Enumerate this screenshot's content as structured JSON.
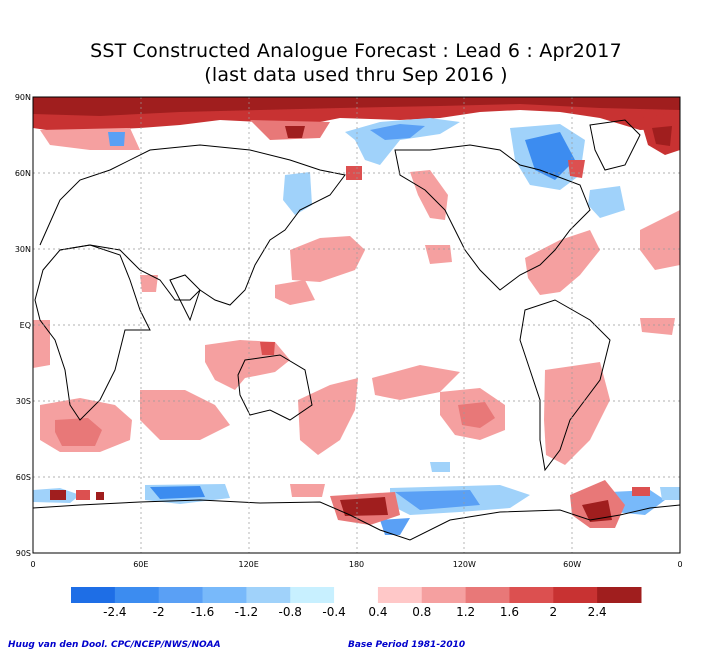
{
  "title": "SST Constructed Analogue Forecast : Lead 6 : Apr2017",
  "subtitle": "(last data used thru Sep 2016 )",
  "lat_labels": [
    "90N",
    "60N",
    "30N",
    "EQ",
    "30S",
    "60S",
    "90S"
  ],
  "lon_labels": [
    "0",
    "60E",
    "120E",
    "180",
    "120W",
    "60W",
    "0"
  ],
  "colorbar": {
    "colors": [
      "#1e6ee6",
      "#3c8cf0",
      "#5aa0f5",
      "#78b9fa",
      "#a0d2fa",
      "#c8f0ff",
      "#ffffff",
      "#ffc8c8",
      "#f5a0a0",
      "#e87878",
      "#dc5050",
      "#c83232",
      "#a01e1e"
    ],
    "labels": [
      "-2.4",
      "-2",
      "-1.6",
      "-1.2",
      "-0.8",
      "-0.4",
      "0.4",
      "0.8",
      "1.2",
      "1.6",
      "2",
      "2.4"
    ]
  },
  "credit": "Huug van den Dool. CPC/NCEP/NWS/NOAA",
  "base_period": "Base Period 1981-2010"
}
